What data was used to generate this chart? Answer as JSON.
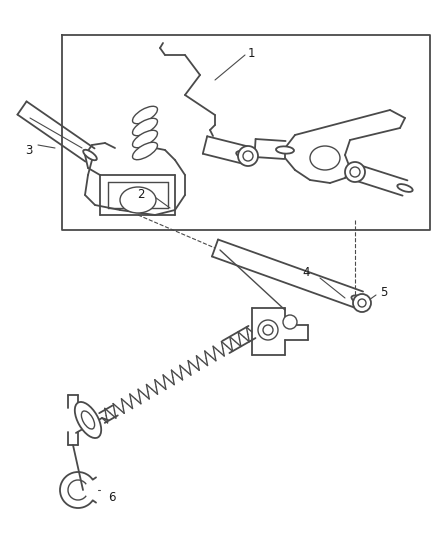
{
  "bg_color": "#ffffff",
  "line_color": "#4a4a4a",
  "fig_width": 4.39,
  "fig_height": 5.33,
  "dpi": 100
}
